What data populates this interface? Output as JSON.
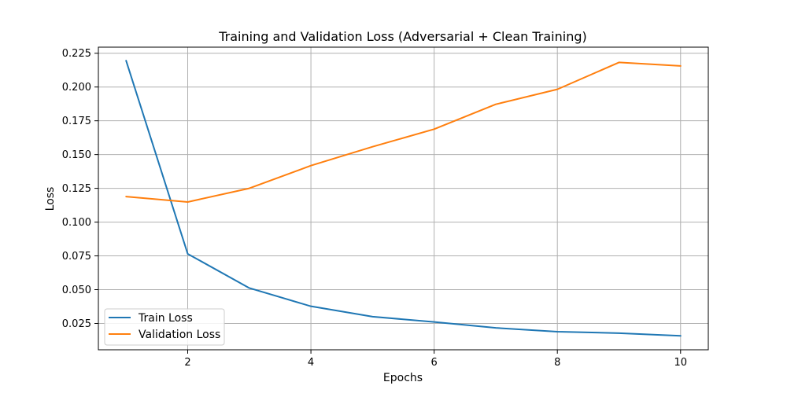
{
  "chart_data": {
    "type": "line",
    "title": "Training and Validation Loss (Adversarial + Clean Training)",
    "xlabel": "Epochs",
    "ylabel": "Loss",
    "x": [
      1,
      2,
      3,
      4,
      5,
      6,
      7,
      8,
      9,
      10
    ],
    "xlim": [
      0.55,
      10.45
    ],
    "ylim": [
      0.0055,
      0.2295
    ],
    "xticks": [
      2,
      4,
      6,
      8,
      10
    ],
    "yticks": [
      0.025,
      0.05,
      0.075,
      0.1,
      0.125,
      0.15,
      0.175,
      0.2,
      0.225
    ],
    "xtick_labels": [
      "2",
      "4",
      "6",
      "8",
      "10"
    ],
    "ytick_labels": [
      "0.025",
      "0.050",
      "0.075",
      "0.100",
      "0.125",
      "0.150",
      "0.175",
      "0.200",
      "0.225"
    ],
    "grid": true,
    "legend_position": "lower-left",
    "series": [
      {
        "name": "Train Loss",
        "color": "#1f77b4",
        "values": [
          0.2195,
          0.0765,
          0.0512,
          0.0377,
          0.03,
          0.0261,
          0.0217,
          0.0189,
          0.0178,
          0.0158
        ]
      },
      {
        "name": "Validation Loss",
        "color": "#ff7f0e",
        "values": [
          0.1189,
          0.1149,
          0.125,
          0.1418,
          0.1558,
          0.1688,
          0.1872,
          0.1983,
          0.2182,
          0.2156
        ]
      }
    ]
  }
}
